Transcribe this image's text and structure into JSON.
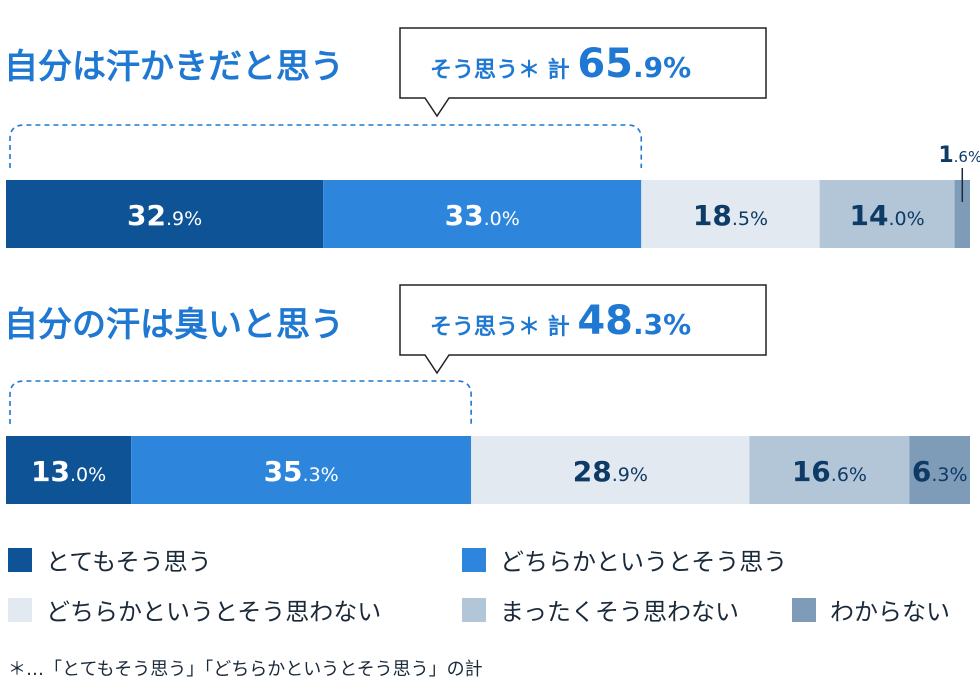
{
  "colors": {
    "very_agree": "#0f5397",
    "somewhat_agree": "#2e86dc",
    "somewhat_disagree": "#e3e9f0",
    "disagree": "#b3c6d8",
    "unknown": "#7e9cb8",
    "title": "#1f78d1",
    "dark_text": "#0e3a66"
  },
  "chart_data": [
    {
      "type": "bar",
      "stacked": "horizontal-100%",
      "title": "自分は汗かきだと思う",
      "callout": {
        "label": "そう思う＊ 計",
        "value": "65.9",
        "unit": "%"
      },
      "segments": [
        {
          "name": "とてもそう思う",
          "value": 32.9,
          "label_int": "32",
          "label_dec": ".9%"
        },
        {
          "name": "どちらかというとそう思う",
          "value": 33.0,
          "label_int": "33",
          "label_dec": ".0%"
        },
        {
          "name": "どちらかというとそう思わない",
          "value": 18.5,
          "label_int": "18",
          "label_dec": ".5%"
        },
        {
          "name": "まったくそう思わない",
          "value": 14.0,
          "label_int": "14",
          "label_dec": ".0%"
        },
        {
          "name": "わからない",
          "value": 1.6,
          "label_int": "1",
          "label_dec": ".6%"
        }
      ]
    },
    {
      "type": "bar",
      "stacked": "horizontal-100%",
      "title": "自分の汗は臭いと思う",
      "callout": {
        "label": "そう思う＊ 計",
        "value": "48.3",
        "unit": "%"
      },
      "segments": [
        {
          "name": "とてもそう思う",
          "value": 13.0,
          "label_int": "13",
          "label_dec": ".0%"
        },
        {
          "name": "どちらかというとそう思う",
          "value": 35.3,
          "label_int": "35",
          "label_dec": ".3%"
        },
        {
          "name": "どちらかというとそう思わない",
          "value": 28.9,
          "label_int": "28",
          "label_dec": ".9%"
        },
        {
          "name": "まったくそう思わない",
          "value": 16.6,
          "label_int": "16",
          "label_dec": ".6%"
        },
        {
          "name": "わからない",
          "value": 6.3,
          "label_int": "6",
          "label_dec": ".3%"
        }
      ]
    }
  ],
  "legend": [
    {
      "label": "とてもそう思う"
    },
    {
      "label": "どちらかというとそう思う"
    },
    {
      "label": "どちらかというとそう思わない"
    },
    {
      "label": "まったくそう思わない"
    },
    {
      "label": "わからない"
    }
  ],
  "footnote": "＊…「とてもそう思う」「どちらかというとそう思う」の計"
}
